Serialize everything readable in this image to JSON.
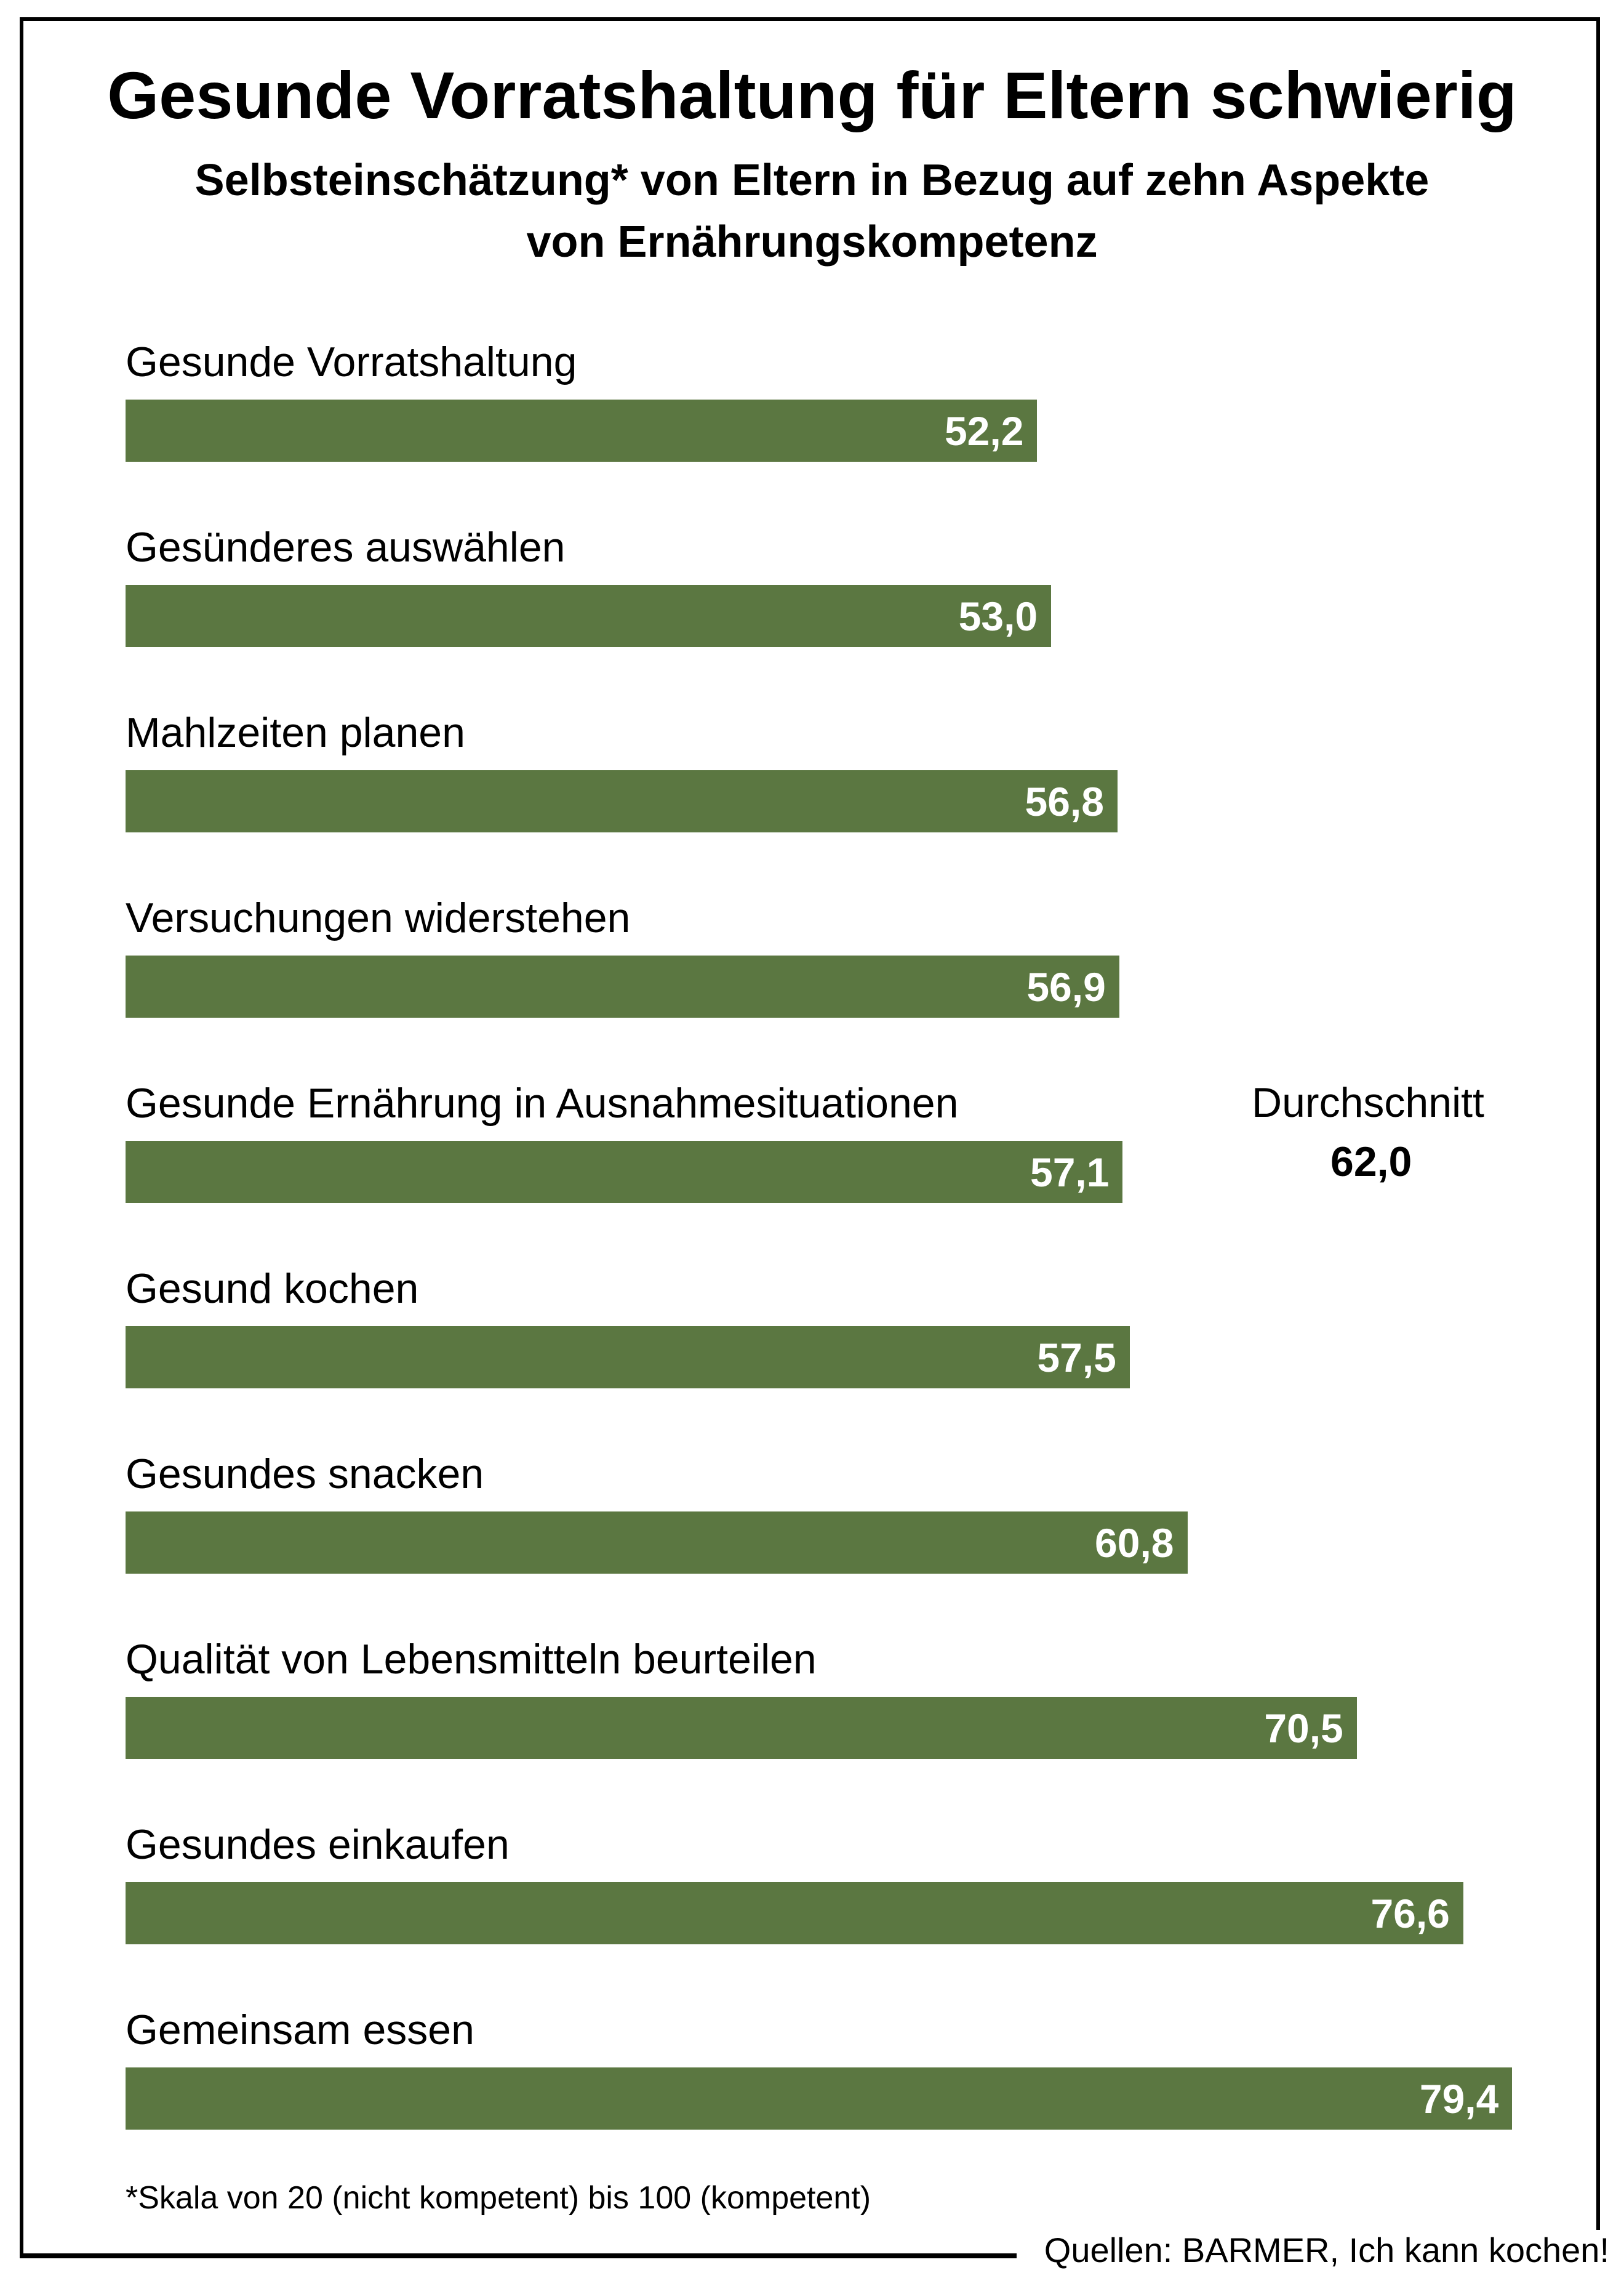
{
  "chart_data": {
    "type": "bar",
    "orientation": "horizontal",
    "title": "Gesunde Vorratshaltung für Eltern schwierig",
    "subtitle": [
      "Selbsteinschätzung* von Eltern in Bezug auf zehn Aspekte",
      "von Ernährungskompetenz"
    ],
    "categories": [
      "Gesunde Vorratshaltung",
      "Gesünderes auswählen",
      "Mahlzeiten planen",
      "Versuchungen widerstehen",
      "Gesunde Ernährung in Ausnahmesituationen",
      "Gesund kochen",
      "Gesundes snacken",
      "Qualität von Lebensmitteln beurteilen",
      "Gesundes einkaufen",
      "Gemeinsam essen"
    ],
    "values": [
      52.2,
      53.0,
      56.8,
      56.9,
      57.1,
      57.5,
      60.8,
      70.5,
      76.6,
      79.4
    ],
    "value_labels": [
      "52,2",
      "53,0",
      "56,8",
      "56,9",
      "57,1",
      "57,5",
      "60,8",
      "70,5",
      "76,6",
      "79,4"
    ],
    "xlim": [
      0,
      100
    ],
    "grid": false,
    "bar_color": "#5b7741",
    "annotation": {
      "label": "Durchschnitt",
      "value": "62,0"
    },
    "footnote": "*Skala von 20 (nicht kompetent) bis 100 (kompetent)",
    "source": "Quellen: BARMER, Ich kann kochen!"
  }
}
